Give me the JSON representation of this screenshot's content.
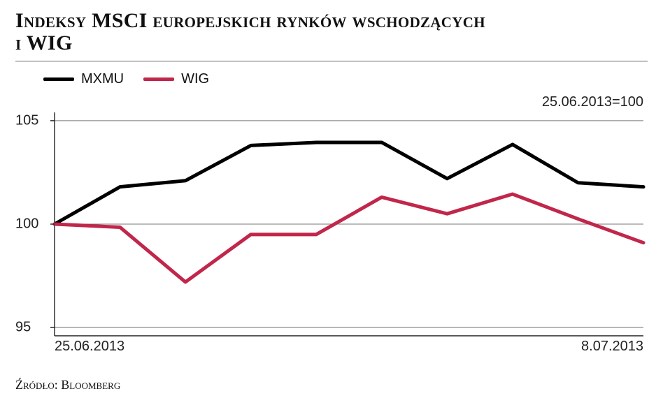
{
  "title_line1": "Indeksy MSCI europejskich rynków wschodzących",
  "title_line2": "i WIG",
  "legend": {
    "items": [
      {
        "label": "MXMU",
        "color": "#000000",
        "line_width": 5
      },
      {
        "label": "WIG",
        "color": "#c1264b",
        "line_width": 5
      }
    ]
  },
  "chart": {
    "type": "line",
    "background_color": "#ffffff",
    "axis_color": "#222222",
    "grid_color": "#777777",
    "grid_width": 1,
    "xlim": [
      0,
      9
    ],
    "ylim": [
      94.6,
      105.4
    ],
    "yticks": [
      95,
      100,
      105
    ],
    "xtick_labels": {
      "start": "25.06.2013",
      "end": "8.07.2013"
    },
    "annotation": "25.06.2013=100",
    "series": [
      {
        "name": "MXMU",
        "color": "#000000",
        "line_width": 5,
        "y": [
          100.0,
          101.8,
          102.1,
          103.8,
          103.95,
          103.95,
          102.2,
          103.85,
          102.0,
          101.8
        ]
      },
      {
        "name": "WIG",
        "color": "#c1264b",
        "line_width": 5,
        "y": [
          100.0,
          99.85,
          97.2,
          99.5,
          99.5,
          101.3,
          100.5,
          101.45,
          100.25,
          99.1
        ]
      }
    ],
    "label_fontsize": 20,
    "title_fontsize": 30
  },
  "source_label": "Źródło: Bloomberg"
}
